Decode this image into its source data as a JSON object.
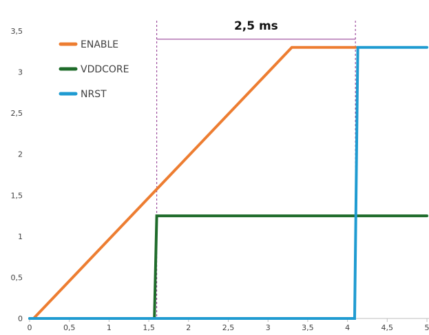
{
  "chart_data": {
    "type": "line",
    "title": "",
    "xlabel": "",
    "ylabel": "",
    "xlim": [
      0,
      5
    ],
    "ylim": [
      0,
      3.5
    ],
    "x_ticks": [
      {
        "value": 0,
        "label": "0"
      },
      {
        "value": 0.5,
        "label": "0,5"
      },
      {
        "value": 1,
        "label": "1"
      },
      {
        "value": 1.5,
        "label": "1,5"
      },
      {
        "value": 2,
        "label": "2"
      },
      {
        "value": 2.5,
        "label": "2,5"
      },
      {
        "value": 3,
        "label": "3"
      },
      {
        "value": 3.5,
        "label": "3,5"
      },
      {
        "value": 4,
        "label": "4"
      },
      {
        "value": 4.5,
        "label": "4,5"
      },
      {
        "value": 5,
        "label": "5"
      }
    ],
    "y_ticks": [
      {
        "value": 0,
        "label": "0"
      },
      {
        "value": 0.5,
        "label": "0,5"
      },
      {
        "value": 1,
        "label": "1"
      },
      {
        "value": 1.5,
        "label": "1,5"
      },
      {
        "value": 2,
        "label": "2"
      },
      {
        "value": 2.5,
        "label": "2,5"
      },
      {
        "value": 3,
        "label": "3"
      },
      {
        "value": 3.5,
        "label": "3,5"
      }
    ],
    "grid": false,
    "legend_position": "top-left",
    "series": [
      {
        "name": "ENABLE",
        "color": "#ED7D31",
        "points": [
          [
            0.05,
            0
          ],
          [
            3.3,
            3.3
          ],
          [
            4.1,
            3.3
          ]
        ]
      },
      {
        "name": "VDDCORE",
        "color": "#1E6B2A",
        "points": [
          [
            0,
            0
          ],
          [
            1.57,
            0
          ],
          [
            1.6,
            1.25
          ],
          [
            5,
            1.25
          ]
        ]
      },
      {
        "name": "NRST",
        "color": "#1F9BD1",
        "points": [
          [
            0,
            0
          ],
          [
            4.09,
            0
          ],
          [
            4.13,
            3.3
          ],
          [
            5,
            3.3
          ]
        ]
      }
    ],
    "annotations": [
      {
        "text": "2,5 ms",
        "x_start": 1.6,
        "x_end": 4.1,
        "y": 3.4,
        "color": "#8B2C8B"
      }
    ]
  }
}
